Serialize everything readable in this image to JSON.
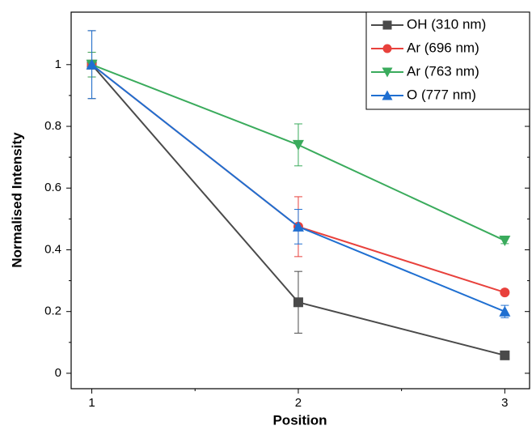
{
  "chart_data": {
    "type": "line",
    "xlabel": "Position",
    "ylabel": "Normalised Intensity",
    "x": [
      1,
      2,
      3
    ],
    "xlim": [
      0.9,
      3.12
    ],
    "xticks": [
      1,
      2,
      3
    ],
    "ylim": [
      -0.05,
      1.17
    ],
    "yticks": [
      0,
      0.2,
      0.4,
      0.6,
      0.8,
      1
    ],
    "legend": "top-right",
    "series": [
      {
        "name": "OH (310 nm)",
        "color": "#4a4a4a",
        "marker": "square",
        "values": [
          1,
          0.23,
          0.058
        ],
        "errors": [
          0.11,
          0.1,
          0.005
        ]
      },
      {
        "name": "Ar (696 nm)",
        "color": "#e8413c",
        "marker": "circle",
        "values": [
          1,
          0.475,
          0.262
        ],
        "errors": [
          0.04,
          0.097,
          0.005
        ]
      },
      {
        "name": "Ar (763 nm)",
        "color": "#3aab5c",
        "marker": "triangle-down",
        "values": [
          1,
          0.74,
          0.43
        ],
        "errors": [
          0.04,
          0.068,
          0.01
        ]
      },
      {
        "name": "O (777 nm)",
        "color": "#1f6fd1",
        "marker": "triangle-up",
        "values": [
          1,
          0.475,
          0.2
        ],
        "errors": [
          0.11,
          0.056,
          0.02
        ]
      }
    ]
  }
}
